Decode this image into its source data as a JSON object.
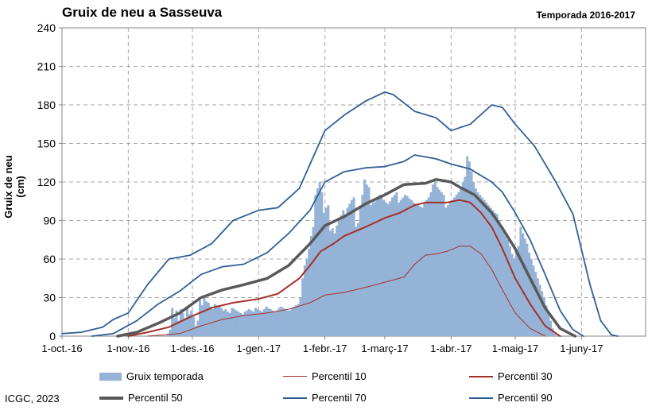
{
  "header": {
    "title": "Gruix de neu a Sasseuva",
    "season": "Temporada 2016-2017"
  },
  "footer": {
    "credit": "ICGC, 2023"
  },
  "legend": [
    {
      "label": "Gruix temporada",
      "color": "#95b3d7",
      "kind": "bar"
    },
    {
      "label": "Percentil 10",
      "color": "#a5302a",
      "kind": "thin"
    },
    {
      "label": "Percentil 30",
      "color": "#a5302a",
      "kind": "thick"
    },
    {
      "label": "Percentil 50",
      "color": "#595959",
      "kind": "heavy"
    },
    {
      "label": "Percentil 70",
      "color": "#2f5f98",
      "kind": "thick"
    },
    {
      "label": "Percentil 90",
      "color": "#2f5f98",
      "kind": "thick"
    }
  ],
  "chart_data": {
    "type": "bar",
    "title": "Gruix de neu a Sasseuva",
    "ylabel": "Gruix de neu (cm)",
    "ylim": [
      0,
      240
    ],
    "yticks": [
      "0",
      "30",
      "60",
      "90",
      "120",
      "150",
      "180",
      "210",
      "240"
    ],
    "xdomain": [
      "2016-10-01",
      "2017-07-01"
    ],
    "xticks": [
      {
        "date": "2016-10-01",
        "label": "1-oct.-16"
      },
      {
        "date": "2016-11-01",
        "label": "1-nov.-16"
      },
      {
        "date": "2016-12-01",
        "label": "1-des.-16"
      },
      {
        "date": "2017-01-01",
        "label": "1-gen.-17"
      },
      {
        "date": "2017-02-01",
        "label": "1-febr.-17"
      },
      {
        "date": "2017-03-01",
        "label": "1-març-17"
      },
      {
        "date": "2017-04-01",
        "label": "1-abr.-17"
      },
      {
        "date": "2017-05-01",
        "label": "1-maig-17"
      },
      {
        "date": "2017-06-01",
        "label": "1-juny-17"
      }
    ],
    "grid": true,
    "legend_position": "bottom",
    "bars": {
      "name": "Gruix temporada",
      "color": "#95b3d7",
      "start": "2016-11-14",
      "interval_days": 1,
      "values": [
        0,
        0,
        0,
        0,
        0,
        2,
        5,
        22,
        14,
        20,
        12,
        21,
        18,
        14,
        22,
        17,
        20,
        15,
        8,
        12,
        28,
        24,
        30,
        27,
        26,
        23,
        21,
        25,
        24,
        23,
        22,
        20,
        21,
        19,
        18,
        22,
        21,
        20,
        19,
        18,
        17,
        19,
        20,
        21,
        20,
        19,
        22,
        21,
        20,
        19,
        21,
        23,
        22,
        21,
        20,
        19,
        20,
        22,
        23,
        22,
        21,
        20,
        20,
        22,
        23,
        24,
        25,
        30,
        45,
        55,
        60,
        68,
        78,
        85,
        110,
        115,
        120,
        112,
        96,
        100,
        102,
        82,
        84,
        80,
        86,
        90,
        94,
        98,
        95,
        100,
        103,
        106,
        108,
        85,
        88,
        100,
        110,
        122,
        118,
        116,
        102,
        104,
        105,
        107,
        110,
        108,
        106,
        104,
        103,
        105,
        108,
        110,
        112,
        104,
        106,
        108,
        110,
        109,
        107,
        106,
        104,
        103,
        102,
        101,
        100,
        104,
        106,
        108,
        112,
        118,
        120,
        116,
        114,
        112,
        110,
        100,
        102,
        104,
        106,
        108,
        110,
        112,
        116,
        120,
        124,
        140,
        136,
        128,
        120,
        115,
        112,
        110,
        108,
        106,
        104,
        102,
        100,
        98,
        96,
        95,
        90,
        86,
        82,
        78,
        75,
        70,
        64,
        60,
        66,
        70,
        85,
        80,
        76,
        72,
        65,
        60,
        55,
        50,
        45,
        40,
        35,
        30,
        24,
        18,
        12,
        6,
        2
      ]
    },
    "series": [
      {
        "name": "Percentil 10",
        "color": "#a5302a",
        "width": 1,
        "points": [
          [
            "2016-11-10",
            0
          ],
          [
            "2016-11-25",
            2
          ],
          [
            "2016-12-05",
            8
          ],
          [
            "2016-12-15",
            13
          ],
          [
            "2016-12-25",
            16
          ],
          [
            "2017-01-05",
            18
          ],
          [
            "2017-01-15",
            21
          ],
          [
            "2017-01-25",
            26
          ],
          [
            "2017-02-01",
            32
          ],
          [
            "2017-02-10",
            34
          ],
          [
            "2017-02-20",
            38
          ],
          [
            "2017-03-01",
            42
          ],
          [
            "2017-03-10",
            46
          ],
          [
            "2017-03-15",
            56
          ],
          [
            "2017-03-20",
            63
          ],
          [
            "2017-03-25",
            64
          ],
          [
            "2017-03-30",
            66
          ],
          [
            "2017-04-05",
            70
          ],
          [
            "2017-04-10",
            70
          ],
          [
            "2017-04-15",
            64
          ],
          [
            "2017-04-20",
            52
          ],
          [
            "2017-04-25",
            36
          ],
          [
            "2017-05-01",
            18
          ],
          [
            "2017-05-08",
            6
          ],
          [
            "2017-05-15",
            0
          ]
        ]
      },
      {
        "name": "Percentil 30",
        "color": "#a5302a",
        "width": 2,
        "points": [
          [
            "2016-11-01",
            0
          ],
          [
            "2016-11-10",
            3
          ],
          [
            "2016-11-20",
            7
          ],
          [
            "2016-11-30",
            15
          ],
          [
            "2016-12-10",
            22
          ],
          [
            "2016-12-20",
            26
          ],
          [
            "2017-01-01",
            29
          ],
          [
            "2017-01-10",
            33
          ],
          [
            "2017-01-20",
            45
          ],
          [
            "2017-01-25",
            55
          ],
          [
            "2017-01-30",
            66
          ],
          [
            "2017-02-05",
            72
          ],
          [
            "2017-02-10",
            78
          ],
          [
            "2017-02-20",
            85
          ],
          [
            "2017-03-01",
            92
          ],
          [
            "2017-03-08",
            96
          ],
          [
            "2017-03-15",
            102
          ],
          [
            "2017-03-20",
            104
          ],
          [
            "2017-03-30",
            104
          ],
          [
            "2017-04-05",
            106
          ],
          [
            "2017-04-10",
            104
          ],
          [
            "2017-04-15",
            96
          ],
          [
            "2017-04-20",
            85
          ],
          [
            "2017-04-25",
            68
          ],
          [
            "2017-05-01",
            45
          ],
          [
            "2017-05-08",
            25
          ],
          [
            "2017-05-15",
            8
          ],
          [
            "2017-05-22",
            0
          ]
        ]
      },
      {
        "name": "Percentil 50",
        "color": "#595959",
        "width": 3.5,
        "points": [
          [
            "2016-10-27",
            0
          ],
          [
            "2016-11-05",
            3
          ],
          [
            "2016-11-15",
            10
          ],
          [
            "2016-11-25",
            18
          ],
          [
            "2016-12-05",
            30
          ],
          [
            "2016-12-15",
            36
          ],
          [
            "2016-12-25",
            40
          ],
          [
            "2017-01-05",
            45
          ],
          [
            "2017-01-15",
            55
          ],
          [
            "2017-01-25",
            72
          ],
          [
            "2017-02-01",
            86
          ],
          [
            "2017-02-10",
            93
          ],
          [
            "2017-02-20",
            103
          ],
          [
            "2017-03-01",
            110
          ],
          [
            "2017-03-10",
            118
          ],
          [
            "2017-03-20",
            119
          ],
          [
            "2017-03-25",
            122
          ],
          [
            "2017-04-01",
            120
          ],
          [
            "2017-04-05",
            116
          ],
          [
            "2017-04-12",
            110
          ],
          [
            "2017-04-20",
            96
          ],
          [
            "2017-04-25",
            84
          ],
          [
            "2017-05-01",
            68
          ],
          [
            "2017-05-08",
            45
          ],
          [
            "2017-05-15",
            22
          ],
          [
            "2017-05-22",
            6
          ],
          [
            "2017-05-29",
            0
          ]
        ]
      },
      {
        "name": "Percentil 70",
        "color": "#2f5f98",
        "width": 1.8,
        "points": [
          [
            "2016-10-15",
            0
          ],
          [
            "2016-10-25",
            2
          ],
          [
            "2016-11-05",
            12
          ],
          [
            "2016-11-15",
            25
          ],
          [
            "2016-11-25",
            35
          ],
          [
            "2016-12-05",
            48
          ],
          [
            "2016-12-15",
            54
          ],
          [
            "2016-12-25",
            56
          ],
          [
            "2017-01-05",
            65
          ],
          [
            "2017-01-15",
            80
          ],
          [
            "2017-01-25",
            98
          ],
          [
            "2017-02-01",
            120
          ],
          [
            "2017-02-10",
            128
          ],
          [
            "2017-02-20",
            131
          ],
          [
            "2017-03-01",
            132
          ],
          [
            "2017-03-10",
            136
          ],
          [
            "2017-03-15",
            141
          ],
          [
            "2017-03-25",
            138
          ],
          [
            "2017-04-01",
            134
          ],
          [
            "2017-04-10",
            130
          ],
          [
            "2017-04-20",
            120
          ],
          [
            "2017-04-25",
            112
          ],
          [
            "2017-05-01",
            96
          ],
          [
            "2017-05-08",
            75
          ],
          [
            "2017-05-15",
            48
          ],
          [
            "2017-05-22",
            20
          ],
          [
            "2017-05-28",
            5
          ],
          [
            "2017-06-02",
            0
          ]
        ]
      },
      {
        "name": "Percentil 90",
        "color": "#2f5f98",
        "width": 1.8,
        "points": [
          [
            "2016-10-01",
            2
          ],
          [
            "2016-10-10",
            3
          ],
          [
            "2016-10-20",
            7
          ],
          [
            "2016-10-25",
            13
          ],
          [
            "2016-11-01",
            18
          ],
          [
            "2016-11-10",
            40
          ],
          [
            "2016-11-20",
            60
          ],
          [
            "2016-11-30",
            63
          ],
          [
            "2016-12-10",
            72
          ],
          [
            "2016-12-20",
            90
          ],
          [
            "2017-01-01",
            98
          ],
          [
            "2017-01-10",
            100
          ],
          [
            "2017-01-20",
            115
          ],
          [
            "2017-02-01",
            160
          ],
          [
            "2017-02-10",
            172
          ],
          [
            "2017-02-20",
            183
          ],
          [
            "2017-03-01",
            190
          ],
          [
            "2017-03-05",
            188
          ],
          [
            "2017-03-15",
            175
          ],
          [
            "2017-03-25",
            170
          ],
          [
            "2017-04-01",
            160
          ],
          [
            "2017-04-10",
            165
          ],
          [
            "2017-04-20",
            180
          ],
          [
            "2017-04-25",
            178
          ],
          [
            "2017-05-01",
            165
          ],
          [
            "2017-05-10",
            148
          ],
          [
            "2017-05-20",
            120
          ],
          [
            "2017-05-28",
            95
          ],
          [
            "2017-06-05",
            40
          ],
          [
            "2017-06-10",
            12
          ],
          [
            "2017-06-15",
            1
          ],
          [
            "2017-06-18",
            0
          ]
        ]
      }
    ]
  }
}
